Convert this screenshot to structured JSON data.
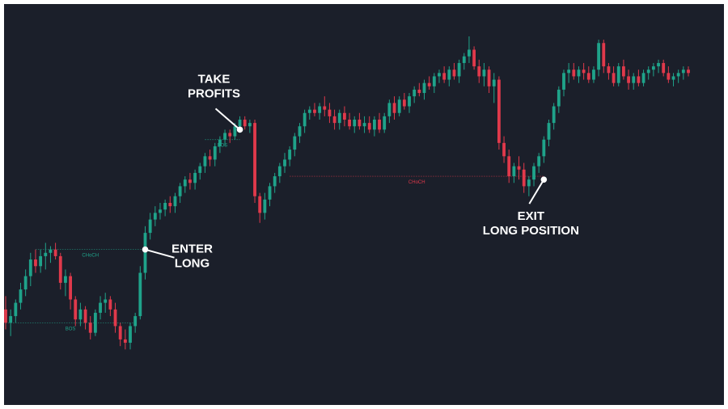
{
  "chart_data": {
    "type": "candlestick",
    "colors": {
      "background": "#1b1f2a",
      "bull": "#1fa38a",
      "bear": "#e0394b",
      "annotation": "#ffffff",
      "frame": "#ffffff"
    },
    "price_scale": {
      "min": 0,
      "max": 100
    },
    "candles": [
      {
        "o": 18,
        "h": 22,
        "l": 12,
        "c": 14
      },
      {
        "o": 14,
        "h": 18,
        "l": 10,
        "c": 16
      },
      {
        "o": 16,
        "h": 21,
        "l": 14,
        "c": 20
      },
      {
        "o": 20,
        "h": 26,
        "l": 18,
        "c": 24
      },
      {
        "o": 24,
        "h": 30,
        "l": 22,
        "c": 28
      },
      {
        "o": 28,
        "h": 35,
        "l": 25,
        "c": 33
      },
      {
        "o": 33,
        "h": 36,
        "l": 29,
        "c": 31
      },
      {
        "o": 31,
        "h": 36,
        "l": 29,
        "c": 34
      },
      {
        "o": 34,
        "h": 38,
        "l": 30,
        "c": 35
      },
      {
        "o": 35,
        "h": 37,
        "l": 32,
        "c": 36
      },
      {
        "o": 36,
        "h": 38,
        "l": 33,
        "c": 34
      },
      {
        "o": 34,
        "h": 35,
        "l": 24,
        "c": 26
      },
      {
        "o": 26,
        "h": 30,
        "l": 22,
        "c": 28
      },
      {
        "o": 28,
        "h": 29,
        "l": 18,
        "c": 21
      },
      {
        "o": 21,
        "h": 22,
        "l": 13,
        "c": 15
      },
      {
        "o": 15,
        "h": 20,
        "l": 13,
        "c": 18
      },
      {
        "o": 18,
        "h": 19,
        "l": 12,
        "c": 14
      },
      {
        "o": 14,
        "h": 16,
        "l": 9,
        "c": 11
      },
      {
        "o": 11,
        "h": 18,
        "l": 10,
        "c": 17
      },
      {
        "o": 17,
        "h": 22,
        "l": 15,
        "c": 20
      },
      {
        "o": 20,
        "h": 23,
        "l": 17,
        "c": 21
      },
      {
        "o": 21,
        "h": 22,
        "l": 16,
        "c": 18
      },
      {
        "o": 18,
        "h": 20,
        "l": 11,
        "c": 13
      },
      {
        "o": 13,
        "h": 14,
        "l": 7,
        "c": 9
      },
      {
        "o": 9,
        "h": 12,
        "l": 6,
        "c": 8
      },
      {
        "o": 8,
        "h": 14,
        "l": 6,
        "c": 13
      },
      {
        "o": 13,
        "h": 17,
        "l": 11,
        "c": 16
      },
      {
        "o": 16,
        "h": 31,
        "l": 15,
        "c": 29
      },
      {
        "o": 29,
        "h": 43,
        "l": 27,
        "c": 41
      },
      {
        "o": 41,
        "h": 47,
        "l": 39,
        "c": 45
      },
      {
        "o": 45,
        "h": 49,
        "l": 43,
        "c": 47
      },
      {
        "o": 47,
        "h": 50,
        "l": 45,
        "c": 48
      },
      {
        "o": 48,
        "h": 51,
        "l": 46,
        "c": 50
      },
      {
        "o": 50,
        "h": 52,
        "l": 47,
        "c": 49
      },
      {
        "o": 49,
        "h": 53,
        "l": 47,
        "c": 52
      },
      {
        "o": 52,
        "h": 56,
        "l": 50,
        "c": 55
      },
      {
        "o": 55,
        "h": 58,
        "l": 53,
        "c": 57
      },
      {
        "o": 57,
        "h": 59,
        "l": 54,
        "c": 56
      },
      {
        "o": 56,
        "h": 60,
        "l": 54,
        "c": 59
      },
      {
        "o": 59,
        "h": 62,
        "l": 57,
        "c": 61
      },
      {
        "o": 61,
        "h": 65,
        "l": 59,
        "c": 64
      },
      {
        "o": 64,
        "h": 66,
        "l": 61,
        "c": 63
      },
      {
        "o": 63,
        "h": 68,
        "l": 61,
        "c": 67
      },
      {
        "o": 67,
        "h": 70,
        "l": 65,
        "c": 69
      },
      {
        "o": 69,
        "h": 72,
        "l": 67,
        "c": 71
      },
      {
        "o": 71,
        "h": 72,
        "l": 68,
        "c": 70
      },
      {
        "o": 70,
        "h": 74,
        "l": 69,
        "c": 73
      },
      {
        "o": 73,
        "h": 76,
        "l": 71,
        "c": 75
      },
      {
        "o": 75,
        "h": 76,
        "l": 72,
        "c": 73
      },
      {
        "o": 73,
        "h": 75,
        "l": 71,
        "c": 74
      },
      {
        "o": 74,
        "h": 75,
        "l": 50,
        "c": 52
      },
      {
        "o": 52,
        "h": 53,
        "l": 44,
        "c": 47
      },
      {
        "o": 47,
        "h": 53,
        "l": 45,
        "c": 51
      },
      {
        "o": 51,
        "h": 56,
        "l": 49,
        "c": 55
      },
      {
        "o": 55,
        "h": 59,
        "l": 53,
        "c": 58
      },
      {
        "o": 58,
        "h": 62,
        "l": 56,
        "c": 61
      },
      {
        "o": 61,
        "h": 65,
        "l": 59,
        "c": 63
      },
      {
        "o": 63,
        "h": 67,
        "l": 61,
        "c": 66
      },
      {
        "o": 66,
        "h": 71,
        "l": 64,
        "c": 70
      },
      {
        "o": 70,
        "h": 74,
        "l": 68,
        "c": 73
      },
      {
        "o": 73,
        "h": 78,
        "l": 71,
        "c": 77
      },
      {
        "o": 77,
        "h": 79,
        "l": 75,
        "c": 78
      },
      {
        "o": 78,
        "h": 80,
        "l": 76,
        "c": 77
      },
      {
        "o": 77,
        "h": 80,
        "l": 75,
        "c": 79
      },
      {
        "o": 79,
        "h": 82,
        "l": 76,
        "c": 78
      },
      {
        "o": 78,
        "h": 80,
        "l": 74,
        "c": 76
      },
      {
        "o": 76,
        "h": 78,
        "l": 72,
        "c": 74
      },
      {
        "o": 74,
        "h": 78,
        "l": 72,
        "c": 77
      },
      {
        "o": 77,
        "h": 79,
        "l": 73,
        "c": 75
      },
      {
        "o": 75,
        "h": 77,
        "l": 72,
        "c": 73
      },
      {
        "o": 73,
        "h": 76,
        "l": 71,
        "c": 75
      },
      {
        "o": 75,
        "h": 77,
        "l": 72,
        "c": 73
      },
      {
        "o": 73,
        "h": 76,
        "l": 71,
        "c": 74
      },
      {
        "o": 74,
        "h": 76,
        "l": 71,
        "c": 72
      },
      {
        "o": 72,
        "h": 76,
        "l": 70,
        "c": 75
      },
      {
        "o": 75,
        "h": 77,
        "l": 71,
        "c": 72
      },
      {
        "o": 72,
        "h": 77,
        "l": 71,
        "c": 76
      },
      {
        "o": 76,
        "h": 81,
        "l": 74,
        "c": 80
      },
      {
        "o": 80,
        "h": 82,
        "l": 75,
        "c": 77
      },
      {
        "o": 77,
        "h": 82,
        "l": 76,
        "c": 81
      },
      {
        "o": 81,
        "h": 83,
        "l": 78,
        "c": 79
      },
      {
        "o": 79,
        "h": 83,
        "l": 77,
        "c": 82
      },
      {
        "o": 82,
        "h": 85,
        "l": 80,
        "c": 84
      },
      {
        "o": 84,
        "h": 86,
        "l": 82,
        "c": 83
      },
      {
        "o": 83,
        "h": 87,
        "l": 81,
        "c": 86
      },
      {
        "o": 86,
        "h": 88,
        "l": 84,
        "c": 85
      },
      {
        "o": 85,
        "h": 89,
        "l": 83,
        "c": 88
      },
      {
        "o": 88,
        "h": 90,
        "l": 86,
        "c": 89
      },
      {
        "o": 89,
        "h": 91,
        "l": 86,
        "c": 87
      },
      {
        "o": 87,
        "h": 91,
        "l": 85,
        "c": 90
      },
      {
        "o": 90,
        "h": 92,
        "l": 87,
        "c": 88
      },
      {
        "o": 88,
        "h": 93,
        "l": 86,
        "c": 92
      },
      {
        "o": 92,
        "h": 95,
        "l": 90,
        "c": 94
      },
      {
        "o": 94,
        "h": 100,
        "l": 92,
        "c": 96
      },
      {
        "o": 96,
        "h": 97,
        "l": 90,
        "c": 91
      },
      {
        "o": 91,
        "h": 93,
        "l": 86,
        "c": 88
      },
      {
        "o": 88,
        "h": 92,
        "l": 85,
        "c": 90
      },
      {
        "o": 90,
        "h": 91,
        "l": 83,
        "c": 85
      },
      {
        "o": 85,
        "h": 89,
        "l": 80,
        "c": 87
      },
      {
        "o": 87,
        "h": 88,
        "l": 66,
        "c": 68
      },
      {
        "o": 68,
        "h": 70,
        "l": 62,
        "c": 64
      },
      {
        "o": 64,
        "h": 66,
        "l": 56,
        "c": 58
      },
      {
        "o": 58,
        "h": 62,
        "l": 56,
        "c": 61
      },
      {
        "o": 61,
        "h": 64,
        "l": 57,
        "c": 60
      },
      {
        "o": 60,
        "h": 62,
        "l": 53,
        "c": 55
      },
      {
        "o": 55,
        "h": 58,
        "l": 52,
        "c": 57
      },
      {
        "o": 57,
        "h": 62,
        "l": 55,
        "c": 61
      },
      {
        "o": 61,
        "h": 65,
        "l": 59,
        "c": 64
      },
      {
        "o": 64,
        "h": 70,
        "l": 62,
        "c": 69
      },
      {
        "o": 69,
        "h": 75,
        "l": 67,
        "c": 74
      },
      {
        "o": 74,
        "h": 80,
        "l": 72,
        "c": 79
      },
      {
        "o": 79,
        "h": 85,
        "l": 77,
        "c": 84
      },
      {
        "o": 84,
        "h": 90,
        "l": 82,
        "c": 89
      },
      {
        "o": 89,
        "h": 92,
        "l": 86,
        "c": 90
      },
      {
        "o": 90,
        "h": 92,
        "l": 87,
        "c": 88
      },
      {
        "o": 88,
        "h": 91,
        "l": 86,
        "c": 90
      },
      {
        "o": 90,
        "h": 92,
        "l": 87,
        "c": 89
      },
      {
        "o": 89,
        "h": 91,
        "l": 86,
        "c": 87
      },
      {
        "o": 87,
        "h": 91,
        "l": 86,
        "c": 90
      },
      {
        "o": 90,
        "h": 99,
        "l": 88,
        "c": 98
      },
      {
        "o": 98,
        "h": 99,
        "l": 89,
        "c": 91
      },
      {
        "o": 91,
        "h": 92,
        "l": 87,
        "c": 89
      },
      {
        "o": 89,
        "h": 91,
        "l": 85,
        "c": 86
      },
      {
        "o": 86,
        "h": 92,
        "l": 85,
        "c": 91
      },
      {
        "o": 91,
        "h": 93,
        "l": 87,
        "c": 88
      },
      {
        "o": 88,
        "h": 90,
        "l": 84,
        "c": 86
      },
      {
        "o": 86,
        "h": 89,
        "l": 84,
        "c": 88
      },
      {
        "o": 88,
        "h": 90,
        "l": 85,
        "c": 86
      },
      {
        "o": 86,
        "h": 90,
        "l": 85,
        "c": 89
      },
      {
        "o": 89,
        "h": 91,
        "l": 87,
        "c": 90
      },
      {
        "o": 90,
        "h": 92,
        "l": 88,
        "c": 91
      },
      {
        "o": 91,
        "h": 93,
        "l": 89,
        "c": 92
      },
      {
        "o": 92,
        "h": 93,
        "l": 88,
        "c": 89
      },
      {
        "o": 89,
        "h": 91,
        "l": 86,
        "c": 87
      },
      {
        "o": 87,
        "h": 89,
        "l": 85,
        "c": 88
      },
      {
        "o": 88,
        "h": 90,
        "l": 86,
        "c": 89
      },
      {
        "o": 89,
        "h": 91,
        "l": 87,
        "c": 90
      },
      {
        "o": 90,
        "h": 91,
        "l": 88,
        "c": 89
      }
    ],
    "levels": [
      {
        "label": "BOS",
        "kind": "bull",
        "price": 14,
        "from": 0,
        "to": 26
      },
      {
        "label": "CHoCH",
        "kind": "bull",
        "price": 36,
        "from": 6,
        "to": 28
      },
      {
        "label": "BOS",
        "kind": "bull",
        "price": 69,
        "from": 40,
        "to": 47
      },
      {
        "label": "CHoCH",
        "kind": "bear",
        "price": 58,
        "from": 57,
        "to": 108
      }
    ],
    "annotations": [
      {
        "lines": [
          "ENTER",
          "LONG"
        ],
        "candle": 28,
        "price": 36
      },
      {
        "lines": [
          "TAKE",
          "PROFITS"
        ],
        "candle": 47,
        "price": 72
      },
      {
        "lines": [
          "EXIT",
          "LONG POSITION"
        ],
        "candle": 108,
        "price": 57
      }
    ]
  }
}
